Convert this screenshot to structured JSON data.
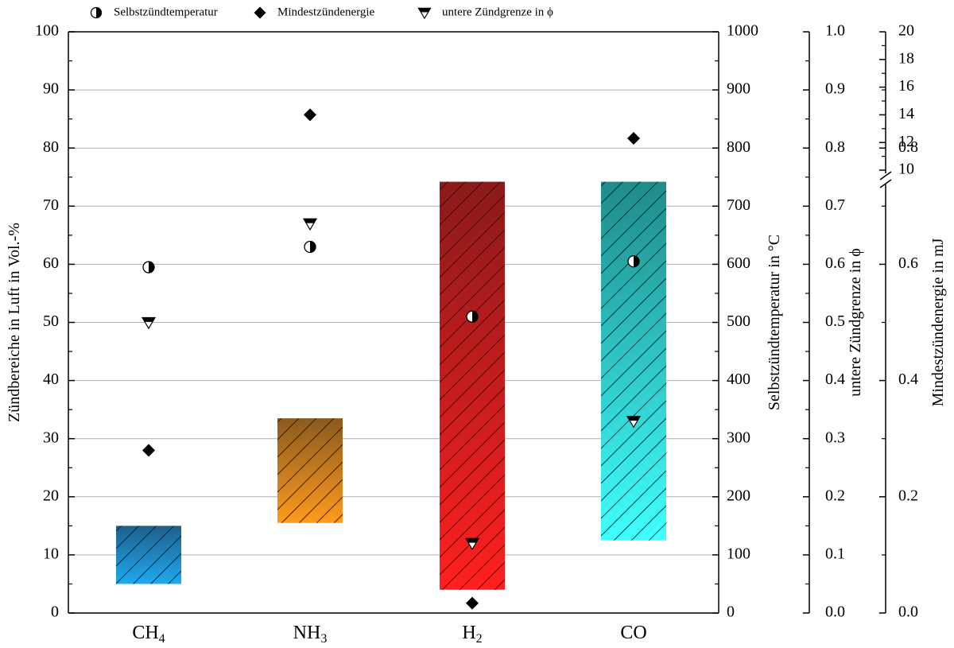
{
  "chart_data": {
    "type": "bar",
    "categories": [
      "CH",
      "NH",
      "H",
      "CO"
    ],
    "category_subscripts": [
      "4",
      "3",
      "2",
      ""
    ],
    "legend": {
      "placement": "top",
      "entries": [
        {
          "label": "Selbstzündtemperatur",
          "marker": "half-circle"
        },
        {
          "label": "Mindestzündenergie",
          "marker": "diamond"
        },
        {
          "label": "untere Zündgrenze in ϕ",
          "marker": "half-triangle-down"
        }
      ]
    },
    "axes": {
      "left": {
        "label": "Zündbereiche in Luft in Vol.-%",
        "min": 0,
        "max": 100,
        "ticks": [
          "0",
          "10",
          "20",
          "30",
          "40",
          "50",
          "60",
          "70",
          "80",
          "90",
          "100"
        ]
      },
      "right1": {
        "label": "Selbstzündtemperatur in °C",
        "min": 0,
        "max": 1000,
        "ticks": [
          "0",
          "100",
          "200",
          "300",
          "400",
          "500",
          "600",
          "700",
          "800",
          "900",
          "1000"
        ]
      },
      "right2": {
        "label": "untere Zündgrenze in ϕ",
        "min": 0.0,
        "max": 1.0,
        "ticks": [
          "0.0",
          "0.1",
          "0.2",
          "0.3",
          "0.4",
          "0.5",
          "0.6",
          "0.7",
          "0.8",
          "0.9",
          "1.0"
        ]
      },
      "right3": {
        "label": "Mindestzündenergie in mJ",
        "lower_range": [
          0,
          1.0
        ],
        "upper_range": [
          10,
          20
        ],
        "lower_ticks": [
          "0.0",
          "0.2",
          "0.4",
          "0.6",
          "0.8"
        ],
        "upper_ticks": [
          "10",
          "12",
          "14",
          "16",
          "18",
          "20"
        ]
      }
    },
    "grid": true,
    "ranges": [
      {
        "category": "CH4",
        "low": 5,
        "high": 15,
        "color_top": "#1f5f8b",
        "color_bottom": "#1eaaf0"
      },
      {
        "category": "NH3",
        "low": 15.5,
        "high": 33.5,
        "color_top": "#8b5a1f",
        "color_bottom": "#ff9a1e"
      },
      {
        "category": "H2",
        "low": 4,
        "high": 74.2,
        "color_top": "#8b1a1a",
        "color_bottom": "#ff2020"
      },
      {
        "category": "CO",
        "low": 12.5,
        "high": 74.2,
        "color_top": "#1f8b8b",
        "color_bottom": "#40ffff"
      }
    ],
    "series": [
      {
        "name": "Selbstzündtemperatur",
        "axis": "right1",
        "values": [
          595,
          630,
          510,
          605
        ]
      },
      {
        "name": "Mindestzündenergie",
        "axis": "right3",
        "values": [
          0.28,
          14,
          0.017,
          12.3
        ]
      },
      {
        "name": "untere Zündgrenze in ϕ",
        "axis": "right2",
        "values": [
          0.5,
          0.67,
          0.12,
          0.33
        ]
      }
    ]
  }
}
